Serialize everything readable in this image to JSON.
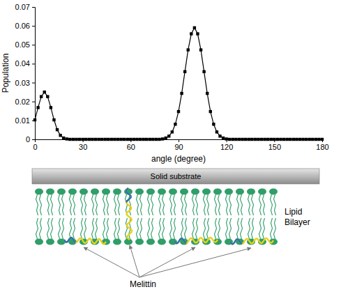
{
  "chart_data": {
    "type": "line",
    "x_label": "angle (degree)",
    "y_label": "Population",
    "x": [
      0,
      2,
      4,
      6,
      8,
      10,
      12,
      14,
      16,
      18,
      20,
      22,
      24,
      26,
      28,
      30,
      32,
      34,
      36,
      38,
      40,
      42,
      44,
      46,
      48,
      50,
      52,
      54,
      56,
      58,
      60,
      62,
      64,
      66,
      68,
      70,
      72,
      74,
      76,
      78,
      80,
      82,
      84,
      86,
      88,
      90,
      92,
      94,
      96,
      98,
      100,
      102,
      104,
      106,
      108,
      110,
      112,
      114,
      116,
      118,
      120,
      122,
      124,
      126,
      128,
      130,
      132,
      134,
      136,
      138,
      140,
      142,
      144,
      146,
      148,
      150,
      152,
      154,
      156,
      158,
      160,
      162,
      164,
      166,
      168,
      170,
      172,
      174,
      176,
      178,
      180
    ],
    "values": [
      0.0103,
      0.0168,
      0.0226,
      0.025,
      0.0226,
      0.0168,
      0.0103,
      0.0051,
      0.0021,
      0.0007,
      0.0002,
      0,
      0,
      0,
      0,
      0,
      0,
      0,
      0,
      0,
      0,
      0,
      0,
      0,
      0,
      0,
      0,
      0,
      0,
      0,
      0,
      0,
      0,
      0,
      0,
      0,
      0,
      0,
      0,
      0,
      0.0002,
      0.0007,
      0.0017,
      0.0039,
      0.008,
      0.0147,
      0.0243,
      0.0358,
      0.0473,
      0.0558,
      0.059,
      0.0558,
      0.0473,
      0.0358,
      0.0243,
      0.0147,
      0.008,
      0.0039,
      0.0017,
      0.0007,
      0.0002,
      0,
      0,
      0,
      0,
      0,
      0,
      0,
      0,
      0,
      0,
      0,
      0,
      0,
      0,
      0,
      0,
      0,
      0,
      0,
      0,
      0,
      0,
      0,
      0,
      0,
      0,
      0,
      0,
      0,
      0
    ],
    "color": "#000000",
    "marker": "square",
    "line_style": "solid",
    "xlim": [
      0,
      180
    ],
    "xticks": [
      0,
      30,
      60,
      90,
      120,
      150,
      180
    ],
    "ylim": [
      0,
      0.07
    ],
    "yticks": [
      0,
      0.01,
      0.02,
      0.03,
      0.04,
      0.05,
      0.06,
      0.07
    ],
    "grid": false
  },
  "diagram": {
    "substrate_label": "Solid substrate",
    "bilayer_label": "Lipid Bilayer",
    "peptide_label": "Melittin"
  }
}
